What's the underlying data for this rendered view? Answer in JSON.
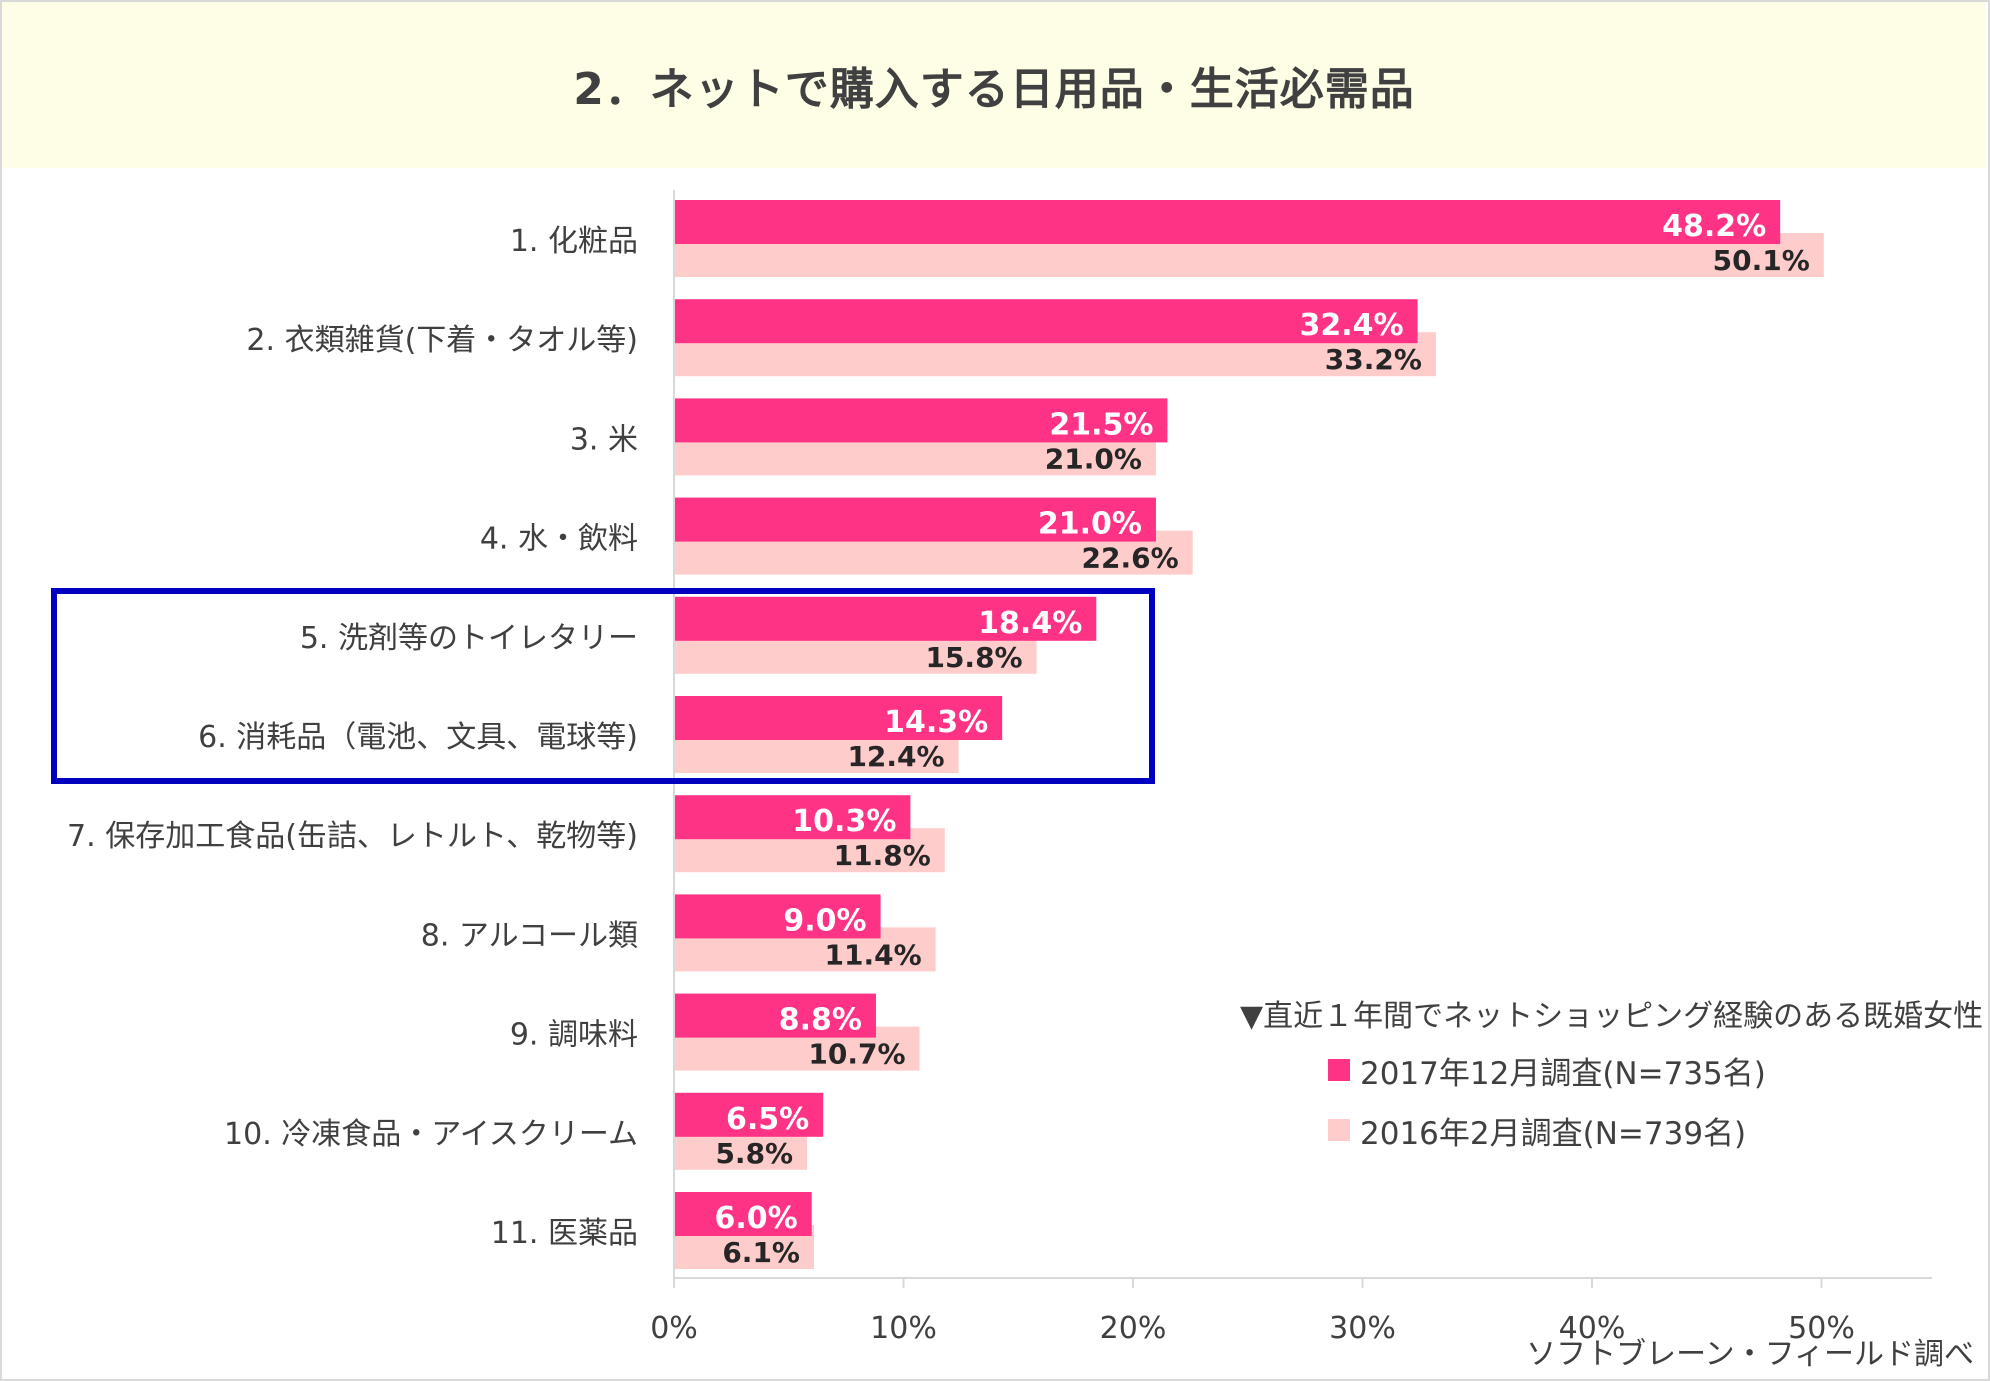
{
  "title": "2．ネットで購入する日用品・生活必需品",
  "chart_data": {
    "type": "bar",
    "orientation": "horizontal",
    "categories": [
      "1. 化粧品",
      "2. 衣類雑貨(下着・タオル等)",
      "3. 米",
      "4. 水・飲料",
      "5. 洗剤等のトイレタリー",
      "6. 消耗品（電池、文具、電球等)",
      "7. 保存加工食品(缶詰、レトルト、乾物等)",
      "8. アルコール類",
      "9. 調味料",
      "10. 冷凍食品・アイスクリーム",
      "11. 医薬品"
    ],
    "series": [
      {
        "name": "2017年12月調査(N=735名)",
        "color": "#ff3385",
        "values": [
          48.2,
          32.4,
          21.5,
          21.0,
          18.4,
          14.3,
          10.3,
          9.0,
          8.8,
          6.5,
          6.0
        ],
        "labels": [
          "48.2%",
          "32.4%",
          "21.5%",
          "21.0%",
          "18.4%",
          "14.3%",
          "10.3%",
          "9.0%",
          "8.8%",
          "6.5%",
          "6.0%"
        ]
      },
      {
        "name": "2016年2月調査(N=739名)",
        "color": "#ffcccc",
        "values": [
          50.1,
          33.2,
          21.0,
          22.6,
          15.8,
          12.4,
          11.8,
          11.4,
          10.7,
          5.8,
          6.1
        ],
        "labels": [
          "50.1%",
          "33.2%",
          "21.0%",
          "22.6%",
          "15.8%",
          "12.4%",
          "11.8%",
          "11.4%",
          "10.7%",
          "5.8%",
          "6.1%"
        ]
      }
    ],
    "x_ticks": [
      "0%",
      "10%",
      "20%",
      "30%",
      "40%",
      "50%"
    ],
    "xlim": [
      0,
      55
    ],
    "grid": false,
    "legend_position": "bottom-right",
    "highlighted_categories": [
      "5. 洗剤等のトイレタリー",
      "6. 消耗品（電池、文具、電球等)"
    ]
  },
  "legend": {
    "title": "▼直近１年間でネットショッピング経験のある既婚女性",
    "items": [
      {
        "label": "2017年12月調査(N=735名)",
        "color": "#ff3385"
      },
      {
        "label": "2016年2月調査(N=739名)",
        "color": "#ffcccc"
      }
    ]
  },
  "source": "ソフトブレーン・フィールド調べ"
}
